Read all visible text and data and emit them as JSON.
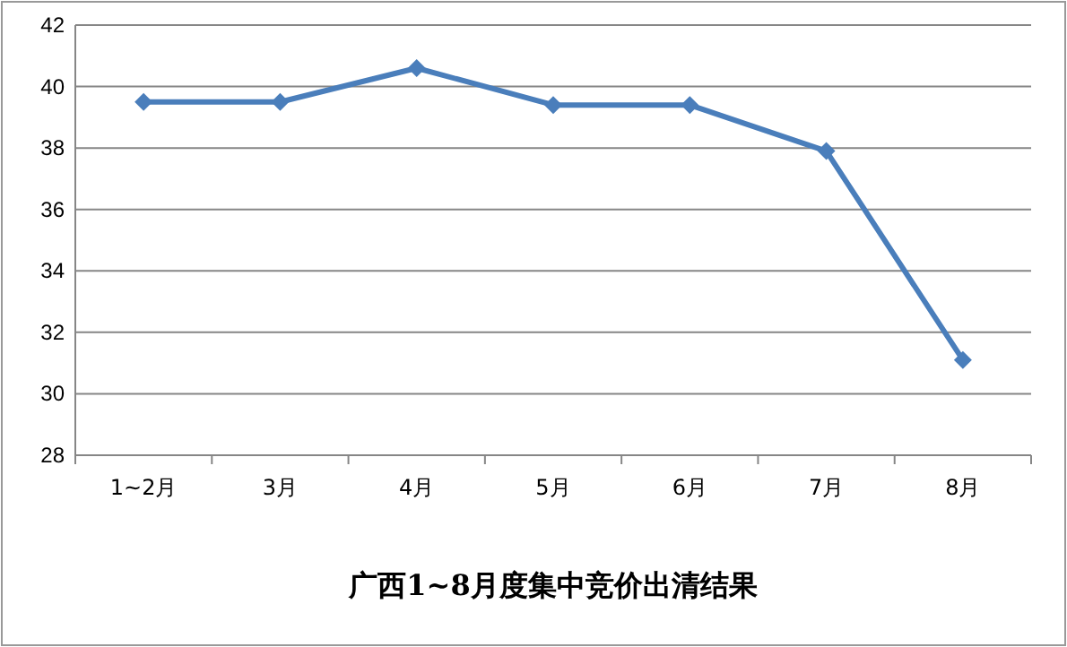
{
  "chart_data": {
    "type": "line",
    "title": "广西1~8月度集中竞价出清结果",
    "categories": [
      "1~2月",
      "3月",
      "4月",
      "5月",
      "6月",
      "7月",
      "8月"
    ],
    "series": [
      {
        "color": "#4a7ebb",
        "values": [
          39.5,
          39.5,
          40.6,
          39.4,
          39.4,
          37.9,
          31.1
        ]
      }
    ],
    "ylim": [
      28,
      42
    ],
    "yticks": [
      28,
      30,
      32,
      34,
      36,
      38,
      40,
      42
    ],
    "grid": "y",
    "marker": "diamond",
    "line_style": "solid"
  }
}
